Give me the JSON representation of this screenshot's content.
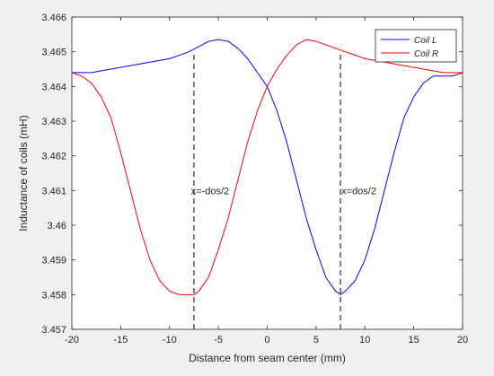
{
  "chart_data": {
    "type": "line",
    "xlabel": "Distance from seam center (mm)",
    "ylabel": "Inductance of coils (mH)",
    "xlim": [
      -20,
      20
    ],
    "ylim": [
      3.457,
      3.466
    ],
    "x_ticks": [
      -20,
      -15,
      -10,
      -5,
      0,
      5,
      10,
      15,
      20
    ],
    "y_ticks": [
      3.457,
      3.458,
      3.459,
      3.46,
      3.461,
      3.462,
      3.463,
      3.464,
      3.465,
      3.466
    ],
    "x_tick_labels": [
      "-20",
      "-15",
      "-10",
      "-5",
      "0",
      "5",
      "10",
      "15",
      "20"
    ],
    "y_tick_labels": [
      "3.457",
      "3.458",
      "3.459",
      "3.46",
      "3.461",
      "3.462",
      "3.463",
      "3.464",
      "3.465",
      "3.466"
    ],
    "grid": false,
    "legend_position": "top-right",
    "series": [
      {
        "name": "Coil L",
        "color": "#0000ff",
        "x": [
          -20,
          -18,
          -16,
          -14,
          -12,
          -10,
          -8,
          -6,
          -5,
          -4,
          -3,
          -2,
          -1,
          0,
          1,
          2,
          3,
          4,
          5,
          6,
          7,
          7.5,
          8,
          9,
          10,
          11,
          12,
          13,
          14,
          15,
          16,
          17,
          18,
          19,
          20
        ],
        "y": [
          3.4644,
          3.4644,
          3.4645,
          3.4646,
          3.4647,
          3.4648,
          3.465,
          3.4653,
          3.46535,
          3.4653,
          3.4651,
          3.4648,
          3.4644,
          3.464,
          3.4633,
          3.4624,
          3.4613,
          3.4602,
          3.4593,
          3.4585,
          3.4581,
          3.458,
          3.4581,
          3.4584,
          3.459,
          3.4599,
          3.461,
          3.4621,
          3.4631,
          3.4637,
          3.4641,
          3.4643,
          3.4643,
          3.4643,
          3.4644
        ]
      },
      {
        "name": "Coil R",
        "color": "#ff0000",
        "x": [
          -20,
          -19,
          -18,
          -17,
          -16,
          -15,
          -14,
          -13,
          -12,
          -11,
          -10,
          -9,
          -8,
          -7.5,
          -7,
          -6,
          -5,
          -4,
          -3,
          -2,
          -1,
          0,
          1,
          2,
          3,
          4,
          5,
          6,
          8,
          10,
          12,
          14,
          16,
          18,
          20
        ],
        "y": [
          3.4644,
          3.4643,
          3.4641,
          3.4637,
          3.4631,
          3.4621,
          3.461,
          3.4599,
          3.459,
          3.4584,
          3.4581,
          3.458,
          3.458,
          3.458,
          3.4581,
          3.4585,
          3.4593,
          3.4602,
          3.4613,
          3.4624,
          3.4633,
          3.464,
          3.4645,
          3.4649,
          3.4652,
          3.46535,
          3.4653,
          3.4652,
          3.465,
          3.4648,
          3.4647,
          3.4646,
          3.4645,
          3.4644,
          3.4644
        ]
      }
    ],
    "vlines": [
      {
        "x": -7.5,
        "y_from": 3.457,
        "y_to": 3.465,
        "style": "dashed",
        "color": "#000000"
      },
      {
        "x": 7.5,
        "y_from": 3.457,
        "y_to": 3.465,
        "style": "dashed",
        "color": "#000000"
      }
    ],
    "annotations": [
      {
        "text": "x=-dos/2",
        "x": -7.8,
        "y": 3.461
      },
      {
        "text": "x=dos/2",
        "x": 7.6,
        "y": 3.461
      }
    ]
  }
}
